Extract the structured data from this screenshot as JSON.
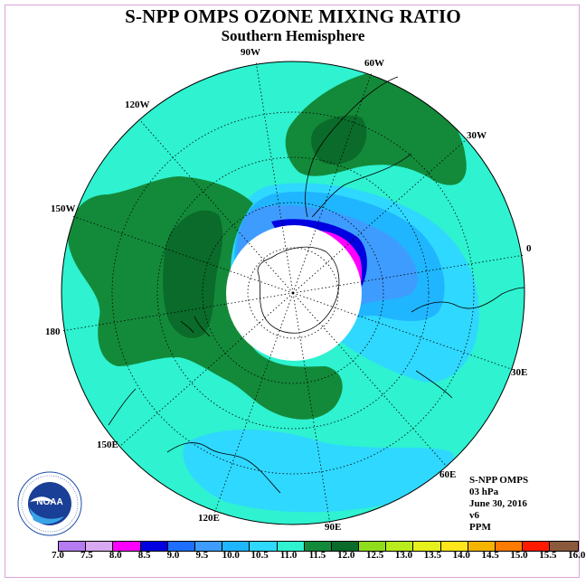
{
  "title": "S-NPP OMPS OZONE MIXING RATIO",
  "subtitle": "Southern Hemisphere",
  "longitude_labels": [
    "90W",
    "60W",
    "30W",
    "0",
    "30E",
    "60E",
    "90E",
    "120E",
    "150E",
    "180",
    "150W",
    "120W"
  ],
  "info": {
    "instrument": "S-NPP OMPS",
    "level": "03 hPa",
    "date": "June 30, 2016",
    "version": "v6",
    "units": "PPM"
  },
  "colorbar": {
    "ticks": [
      "7.0",
      "7.5",
      "8.0",
      "8.5",
      "9.0",
      "9.5",
      "10.0",
      "10.5",
      "11.0",
      "11.5",
      "12.0",
      "12.5",
      "13.0",
      "13.5",
      "14.0",
      "14.5",
      "15.0",
      "15.5",
      "16.0"
    ],
    "colors": [
      "#b57bf0",
      "#d9a8f2",
      "#ff00ff",
      "#0000e0",
      "#1e6fff",
      "#3f9cff",
      "#1fb6ff",
      "#2fd8ff",
      "#2ef2d0",
      "#138a3a",
      "#0a6b2a",
      "#8fdc1c",
      "#b8ec1c",
      "#e6f01c",
      "#ffe61a",
      "#f5b400",
      "#ff7a00",
      "#ff1a00",
      "#8b5a3c"
    ]
  },
  "map_colors": {
    "background": "#2ef2d0",
    "green": "#138a3a",
    "dark_green": "#0a6b2a",
    "light_blue": "#2fd8ff",
    "mid_blue": "#1fb6ff",
    "blue": "#3f9cff",
    "deep_blue": "#0000e0",
    "magenta": "#ff00ff"
  },
  "logo": {
    "text": "NOAA",
    "ring_text": "NATIONAL OCEANIC AND ATMOSPHERIC ADMINISTRATION · U.S. DEPARTMENT OF COMMERCE"
  }
}
